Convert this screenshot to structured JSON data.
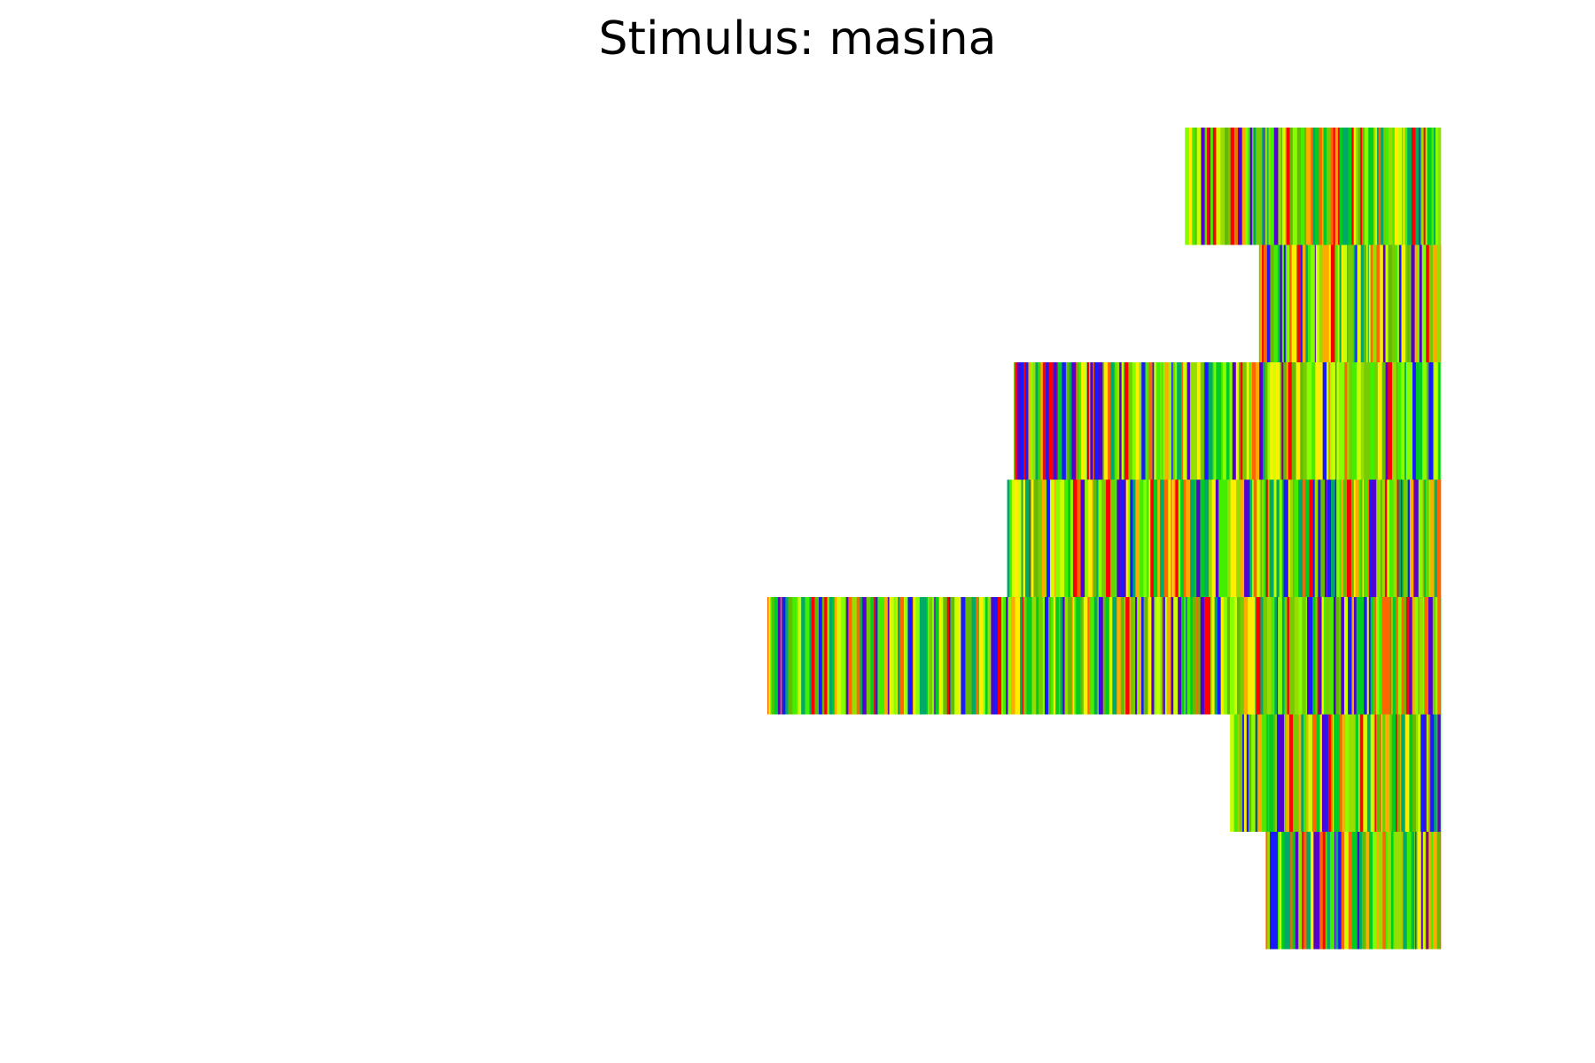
{
  "chart_data": {
    "type": "heatmap",
    "title": "Stimulus: masina",
    "xlabel": "",
    "ylabel": "",
    "axes_visible": false,
    "grid": false,
    "legend": "none",
    "xlim": [
      0,
      1
    ],
    "alignment": "right",
    "palette": [
      "#1a1aff",
      "#5500cc",
      "#ff0000",
      "#ff6600",
      "#ffaa00",
      "#ffee00",
      "#ccff00",
      "#88ff00",
      "#44ee00",
      "#00cc22",
      "#77cc00",
      "#99dd00",
      "#00aa66",
      "#66bb00"
    ],
    "rows": [
      {
        "label": "",
        "start": 0.62
      },
      {
        "label": "",
        "start": 0.73
      },
      {
        "label": "",
        "start": 0.366
      },
      {
        "label": "",
        "start": 0.356
      },
      {
        "label": "",
        "start": 0.0
      },
      {
        "label": "",
        "start": 0.687
      },
      {
        "label": "",
        "start": 0.74
      }
    ]
  }
}
